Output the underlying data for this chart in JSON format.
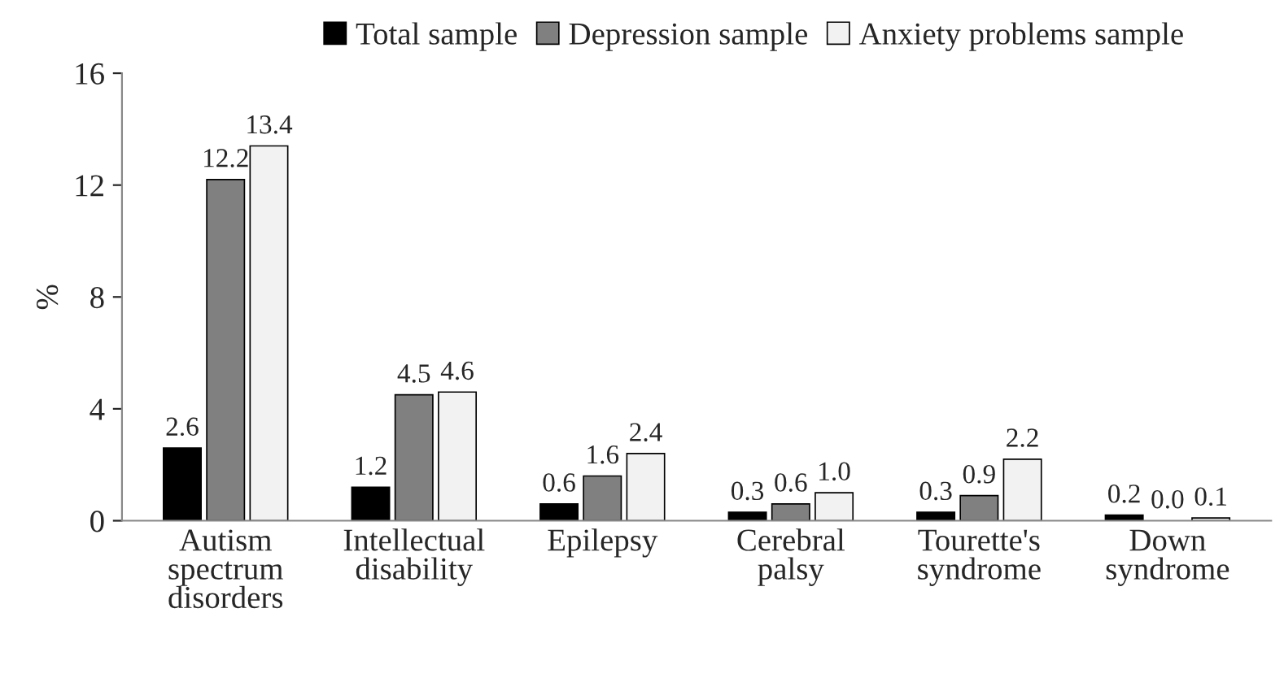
{
  "chart_data": {
    "type": "bar",
    "ylabel": "%",
    "categories": [
      "Autism\nspectrum\ndisorders",
      "Intellectual\ndisability",
      "Epilepsy",
      "Cerebral\npalsy",
      "Tourette's\nsyndrome",
      "Down\nsyndrome"
    ],
    "series": [
      {
        "name": "Total sample",
        "color": "#000000",
        "values": [
          2.6,
          1.2,
          0.6,
          0.3,
          0.3,
          0.2
        ],
        "value_labels": [
          "2.6",
          "1.2",
          "0.6",
          "0.3",
          "0.3",
          "0.2"
        ]
      },
      {
        "name": "Depression sample",
        "color": "#808080",
        "values": [
          12.2,
          4.5,
          1.6,
          0.6,
          0.9,
          0.0
        ],
        "value_labels": [
          "12.2",
          "4.5",
          "1.6",
          "0.6",
          "0.9",
          "0.0"
        ]
      },
      {
        "name": "Anxiety problems sample",
        "color": "#f2f2f2",
        "values": [
          13.4,
          4.6,
          2.4,
          1.0,
          2.2,
          0.1
        ],
        "value_labels": [
          "13.4",
          "4.6",
          "2.4",
          "1.0",
          "2.2",
          "0.1"
        ]
      }
    ],
    "ylim": [
      0,
      16
    ],
    "yticks": [
      0,
      4,
      8,
      12,
      16
    ],
    "grid": false,
    "legend": "top"
  }
}
